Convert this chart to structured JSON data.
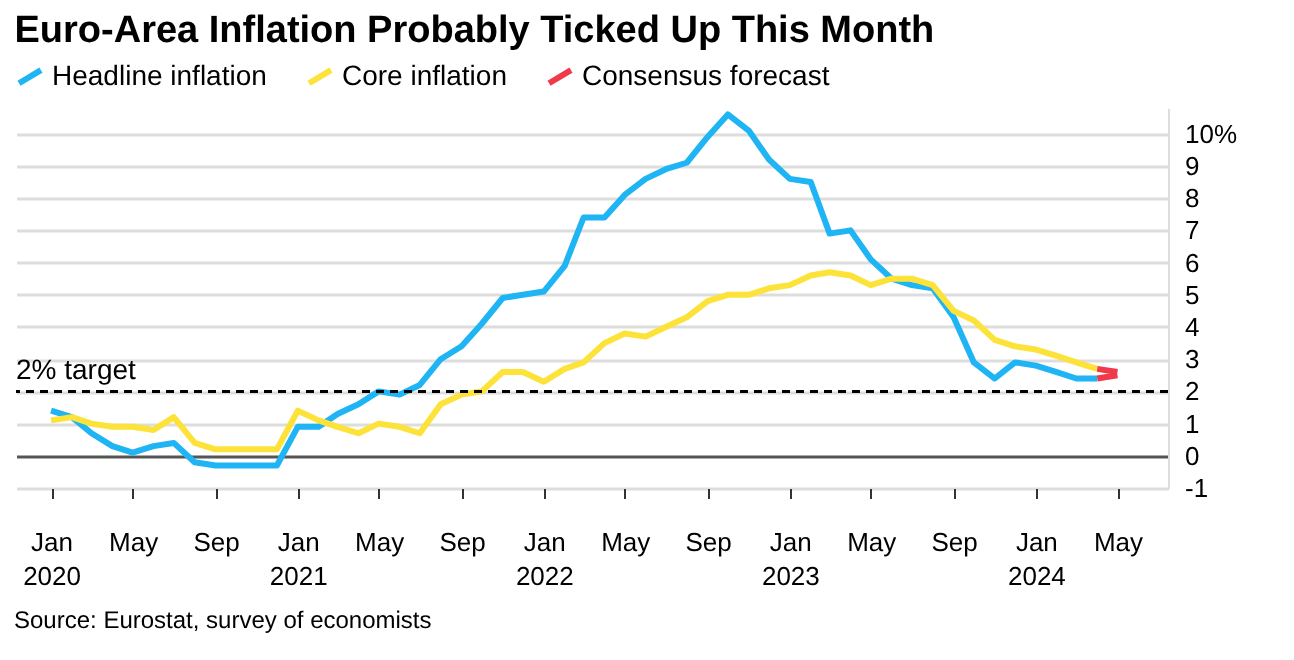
{
  "chart_data": {
    "type": "line",
    "title": "Euro-Area Inflation Probably Ticked Up This Month",
    "x": [
      "2020-01",
      "2020-02",
      "2020-03",
      "2020-04",
      "2020-05",
      "2020-06",
      "2020-07",
      "2020-08",
      "2020-09",
      "2020-10",
      "2020-11",
      "2020-12",
      "2021-01",
      "2021-02",
      "2021-03",
      "2021-04",
      "2021-05",
      "2021-06",
      "2021-07",
      "2021-08",
      "2021-09",
      "2021-10",
      "2021-11",
      "2021-12",
      "2022-01",
      "2022-02",
      "2022-03",
      "2022-04",
      "2022-05",
      "2022-06",
      "2022-07",
      "2022-08",
      "2022-09",
      "2022-10",
      "2022-11",
      "2022-12",
      "2023-01",
      "2023-02",
      "2023-03",
      "2023-04",
      "2023-05",
      "2023-06",
      "2023-07",
      "2023-08",
      "2023-09",
      "2023-10",
      "2023-11",
      "2023-12",
      "2024-01",
      "2024-02",
      "2024-03",
      "2024-04"
    ],
    "series": [
      {
        "name": "Headline inflation",
        "color": "#1fb4f4",
        "values": [
          1.4,
          1.2,
          0.7,
          0.3,
          0.1,
          0.3,
          0.4,
          -0.2,
          -0.3,
          -0.3,
          -0.3,
          -0.3,
          0.9,
          0.9,
          1.3,
          1.6,
          2.0,
          1.9,
          2.2,
          3.0,
          3.4,
          4.1,
          4.9,
          5.0,
          5.1,
          5.9,
          7.4,
          7.4,
          8.1,
          8.6,
          8.9,
          9.1,
          9.9,
          10.6,
          10.1,
          9.2,
          8.6,
          8.5,
          6.9,
          7.0,
          6.1,
          5.5,
          5.3,
          5.2,
          4.3,
          2.9,
          2.4,
          2.9,
          2.8,
          2.6,
          2.4,
          2.4
        ]
      },
      {
        "name": "Core inflation",
        "color": "#fde23a",
        "values": [
          1.1,
          1.2,
          1.0,
          0.9,
          0.9,
          0.8,
          1.2,
          0.4,
          0.2,
          0.2,
          0.2,
          0.2,
          1.4,
          1.1,
          0.9,
          0.7,
          1.0,
          0.9,
          0.7,
          1.6,
          1.9,
          2.0,
          2.6,
          2.6,
          2.3,
          2.7,
          2.9,
          3.5,
          3.8,
          3.7,
          4.0,
          4.3,
          4.8,
          5.0,
          5.0,
          5.2,
          5.3,
          5.6,
          5.7,
          5.6,
          5.3,
          5.5,
          5.5,
          5.3,
          4.5,
          4.2,
          3.6,
          3.4,
          3.3,
          3.1,
          2.9,
          2.7
        ]
      },
      {
        "name": "Consensus forecast",
        "color": "#f03a4a",
        "x": [
          "2024-04",
          "2024-05"
        ],
        "values": [
          2.4,
          2.5
        ]
      },
      {
        "color": "#f03a4a",
        "x": [
          "2024-04",
          "2024-05"
        ],
        "values": [
          2.7,
          2.6
        ]
      }
    ],
    "xlim": [
      "2019-11-10",
      "2024-07-15"
    ],
    "xticks": [
      {
        "value": "2020-01",
        "label": "Jan 2020"
      },
      {
        "value": "2020-05",
        "label": "May"
      },
      {
        "value": "2020-09",
        "label": "Sep"
      },
      {
        "value": "2021-01",
        "label": "Jan 2021"
      },
      {
        "value": "2021-05",
        "label": "May"
      },
      {
        "value": "2021-09",
        "label": "Sep"
      },
      {
        "value": "2022-01",
        "label": "Jan 2022"
      },
      {
        "value": "2022-05",
        "label": "May"
      },
      {
        "value": "2022-09",
        "label": "Sep"
      },
      {
        "value": "2023-01",
        "label": "Jan 2023"
      },
      {
        "value": "2023-05",
        "label": "May"
      },
      {
        "value": "2023-09",
        "label": "Sep"
      },
      {
        "value": "2024-01",
        "label": "Jan 2024"
      },
      {
        "value": "2024-05",
        "label": "May"
      }
    ],
    "ylim": [
      -1,
      10.8
    ],
    "yticks": [
      -1,
      0,
      1,
      2,
      3,
      4,
      5,
      6,
      7,
      8,
      9,
      {
        "value": 10,
        "label": "10%"
      }
    ],
    "ref_lines": [
      {
        "axis": "y",
        "value": 2,
        "label": "2% target",
        "color": "#000000",
        "line_style": "dashed"
      }
    ],
    "grid": "y",
    "legend": "top left",
    "annotations": [
      "Source: Eurostat, survey of economists"
    ]
  }
}
